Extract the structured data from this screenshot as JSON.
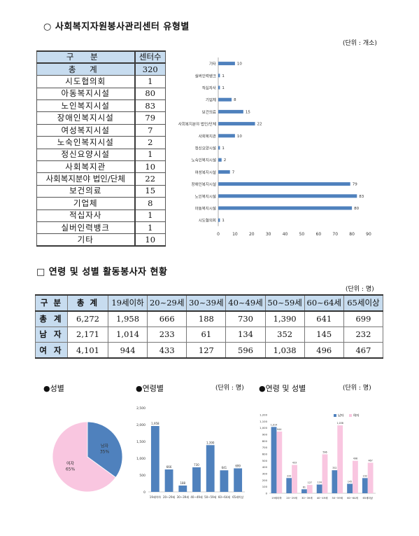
{
  "section1": {
    "title": "○ 사회복지자원봉사관리센터 유형별",
    "unit": "(단위 : 개소)",
    "table": {
      "headers": [
        "구 분",
        "센터수"
      ],
      "rows": [
        {
          "name": "총 계",
          "value": "320"
        },
        {
          "name": "시도협의회",
          "value": "1"
        },
        {
          "name": "아동복지시설",
          "value": "80"
        },
        {
          "name": "노인복지시설",
          "value": "83"
        },
        {
          "name": "장애인복지시설",
          "value": "79"
        },
        {
          "name": "여성복지시설",
          "value": "7"
        },
        {
          "name": "노숙인복지시설",
          "value": "2"
        },
        {
          "name": "정신요양시설",
          "value": "1"
        },
        {
          "name": "사회복지관",
          "value": "10"
        },
        {
          "name": "사회복지분야 법인/단체",
          "value": "22"
        },
        {
          "name": "보건의료",
          "value": "15"
        },
        {
          "name": "기업체",
          "value": "8"
        },
        {
          "name": "적십자사",
          "value": "1"
        },
        {
          "name": "실버인력뱅크",
          "value": "1"
        },
        {
          "name": "기타",
          "value": "10"
        }
      ]
    }
  },
  "section2": {
    "title": "□ 연령 및 성별 활동봉사자 현황",
    "unit": "(단위 : 명)",
    "table": {
      "headers": [
        "구 분",
        "총 계",
        "19세이하",
        "20~29세",
        "30~39세",
        "40~49세",
        "50~59세",
        "60~64세",
        "65세이상"
      ],
      "rows": [
        {
          "label": "총 계",
          "values": [
            "6,272",
            "1,958",
            "666",
            "188",
            "730",
            "1,390",
            "641",
            "699"
          ]
        },
        {
          "label": "남 자",
          "values": [
            "2,171",
            "1,014",
            "233",
            "61",
            "134",
            "352",
            "145",
            "232"
          ]
        },
        {
          "label": "여 자",
          "values": [
            "4,101",
            "944",
            "433",
            "127",
            "596",
            "1,038",
            "496",
            "467"
          ]
        }
      ]
    }
  },
  "captions": {
    "gender": "●성별",
    "age": "●연령별",
    "age_unit": "(단위 : 명)",
    "age_gender": "●연령 및 성별",
    "age_gender_unit": "(단위 : 명)"
  },
  "chart_data": [
    {
      "type": "bar",
      "orientation": "horizontal",
      "categories": [
        "기타",
        "실버인력뱅크",
        "적십자사",
        "기업체",
        "보건의료",
        "사회복지분야 법인/단체",
        "사회복지관",
        "정신요양시설",
        "노숙인복지시설",
        "여성복지시설",
        "장애인복지시설",
        "노인복지시설",
        "아동복지시설",
        "시도협의회"
      ],
      "values": [
        10,
        1,
        1,
        8,
        15,
        22,
        10,
        1,
        2,
        7,
        79,
        83,
        80,
        1
      ],
      "xlim": [
        0,
        90
      ],
      "xticks": [
        0,
        10,
        20,
        30,
        40,
        50,
        60,
        70,
        80,
        90
      ],
      "color": "#4f81bd",
      "grid": false
    },
    {
      "type": "pie",
      "labels": [
        "남자",
        "여자"
      ],
      "percent_labels": [
        "35%",
        "65%"
      ],
      "values": [
        35,
        65
      ],
      "colors": [
        "#4f81bd",
        "#f9c6e0"
      ]
    },
    {
      "type": "bar",
      "categories": [
        "19세이하",
        "20~29세",
        "30~39세",
        "40~49세",
        "50~59세",
        "60~64세",
        "65세이상"
      ],
      "values": [
        1958,
        666,
        188,
        730,
        1390,
        641,
        699
      ],
      "value_labels": [
        "1,958",
        "666",
        "188",
        "730",
        "1,390",
        "641",
        "699"
      ],
      "ylim": [
        0,
        2500
      ],
      "yticks": [
        0,
        500,
        1000,
        1500,
        2000,
        2500
      ],
      "ytick_labels": [
        "0",
        "500",
        "1,000",
        "1,500",
        "2,000",
        "2,500"
      ],
      "color": "#4f81bd"
    },
    {
      "type": "bar",
      "categories": [
        "19세이하",
        "20~29세",
        "30~39세",
        "40~49세",
        "50~59세",
        "60~64세",
        "65세이상"
      ],
      "series": [
        {
          "name": "남자",
          "values": [
            1014,
            233,
            61,
            134,
            352,
            145,
            232
          ],
          "labels": [
            "1,014",
            "233",
            "61",
            "134",
            "352",
            "145",
            "232"
          ],
          "color": "#4f81bd"
        },
        {
          "name": "여자",
          "values": [
            944,
            433,
            127,
            596,
            1038,
            496,
            467
          ],
          "labels": [
            "944",
            "433",
            "127",
            "596",
            "1,038",
            "496",
            "467"
          ],
          "color": "#f9c6e0"
        }
      ],
      "ylim": [
        0,
        1200
      ],
      "yticks": [
        0,
        100,
        200,
        300,
        400,
        500,
        600,
        700,
        800,
        900,
        1000,
        1100,
        1200
      ],
      "ytick_labels": [
        "0",
        "100",
        "200",
        "300",
        "400",
        "500",
        "600",
        "700",
        "800",
        "900",
        "1,000",
        "1,100",
        "1,200"
      ],
      "legend": "top"
    }
  ]
}
